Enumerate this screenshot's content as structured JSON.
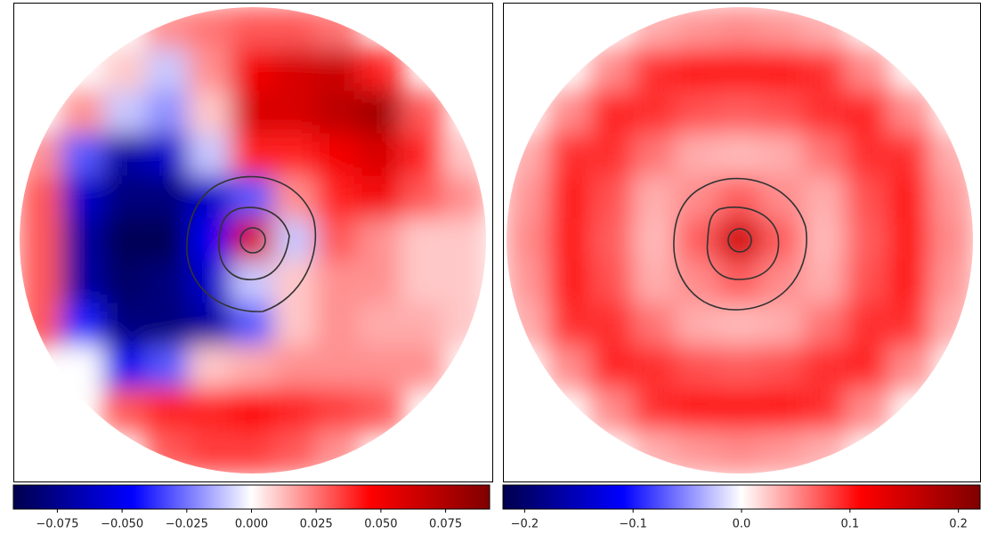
{
  "chart_data": [
    {
      "type": "heatmap",
      "clim": [
        -0.092,
        0.092
      ],
      "ticks": [
        {
          "value": -0.075,
          "label": "−0.075"
        },
        {
          "value": -0.05,
          "label": "−0.050"
        },
        {
          "value": -0.025,
          "label": "−0.025"
        },
        {
          "value": 0,
          "label": "0.000"
        },
        0.025,
        {
          "value": 0.05,
          "label": "0.050"
        },
        0.075
      ],
      "z": [
        [
          null,
          null,
          null,
          0.02,
          0.025,
          0.03,
          0.03,
          0.025,
          null,
          null,
          null
        ],
        [
          null,
          null,
          0.01,
          -0.01,
          0.02,
          0.05,
          0.06,
          0.065,
          0.04,
          null,
          null
        ],
        [
          null,
          0.02,
          -0.01,
          -0.02,
          0.01,
          0.06,
          0.06,
          0.07,
          0.08,
          0.03,
          null
        ],
        [
          0.02,
          -0.03,
          -0.07,
          -0.06,
          -0.01,
          0.04,
          0.04,
          0.05,
          0.06,
          0.04,
          0.01
        ],
        [
          0.03,
          -0.06,
          -0.08,
          -0.08,
          -0.06,
          -0.03,
          0.02,
          0.04,
          0.05,
          0.03,
          0.02
        ],
        [
          0.03,
          -0.07,
          -0.09,
          -0.09,
          -0.05,
          0.06,
          -0.01,
          0.03,
          0.02,
          0.01,
          0.01
        ],
        [
          0.03,
          -0.07,
          -0.085,
          -0.08,
          -0.06,
          -0.01,
          0.01,
          0.02,
          0.02,
          0.01,
          0.01
        ],
        [
          0.03,
          -0.04,
          -0.08,
          -0.08,
          -0.07,
          -0.03,
          0.01,
          0.02,
          0.015,
          0.015,
          0.01
        ],
        [
          null,
          0.0,
          -0.05,
          -0.03,
          0.01,
          0.015,
          0.02,
          0.02,
          0.02,
          0.02,
          null
        ],
        [
          null,
          null,
          0.03,
          0.04,
          0.04,
          0.045,
          0.04,
          0.035,
          0.03,
          null,
          null
        ],
        [
          null,
          null,
          null,
          0.03,
          0.035,
          0.035,
          0.03,
          0.02,
          null,
          null,
          null
        ]
      ]
    },
    {
      "type": "heatmap",
      "clim": [
        -0.22,
        0.22
      ],
      "ticks": [
        {
          "value": -0.2,
          "label": "−0.2"
        },
        {
          "value": -0.1,
          "label": "−0.1"
        },
        {
          "value": 0,
          "label": "0.0"
        },
        0.1,
        0.2
      ],
      "z": [
        [
          null,
          null,
          null,
          0.035,
          0.045,
          0.05,
          0.045,
          0.035,
          null,
          null,
          null
        ],
        [
          null,
          null,
          0.05,
          0.09,
          0.1,
          0.1,
          0.1,
          0.09,
          0.05,
          null,
          null
        ],
        [
          null,
          0.05,
          0.095,
          0.09,
          0.075,
          0.07,
          0.075,
          0.09,
          0.095,
          0.05,
          null
        ],
        [
          0.035,
          0.09,
          0.09,
          0.06,
          0.035,
          0.03,
          0.035,
          0.06,
          0.09,
          0.09,
          0.035
        ],
        [
          0.045,
          0.1,
          0.075,
          0.035,
          0.05,
          0.07,
          0.05,
          0.035,
          0.075,
          0.1,
          0.045
        ],
        [
          0.05,
          0.1,
          0.07,
          0.03,
          0.07,
          0.15,
          0.07,
          0.03,
          0.07,
          0.1,
          0.05
        ],
        [
          0.045,
          0.1,
          0.075,
          0.035,
          0.05,
          0.07,
          0.05,
          0.035,
          0.075,
          0.1,
          0.045
        ],
        [
          0.035,
          0.09,
          0.09,
          0.06,
          0.035,
          0.03,
          0.035,
          0.06,
          0.09,
          0.09,
          0.035
        ],
        [
          null,
          0.05,
          0.095,
          0.09,
          0.075,
          0.07,
          0.075,
          0.09,
          0.095,
          0.05,
          null
        ],
        [
          null,
          null,
          0.05,
          0.09,
          0.1,
          0.1,
          0.1,
          0.09,
          0.05,
          null,
          null
        ],
        [
          null,
          null,
          null,
          0.035,
          0.045,
          0.05,
          0.045,
          0.035,
          null,
          null,
          null
        ]
      ]
    }
  ]
}
